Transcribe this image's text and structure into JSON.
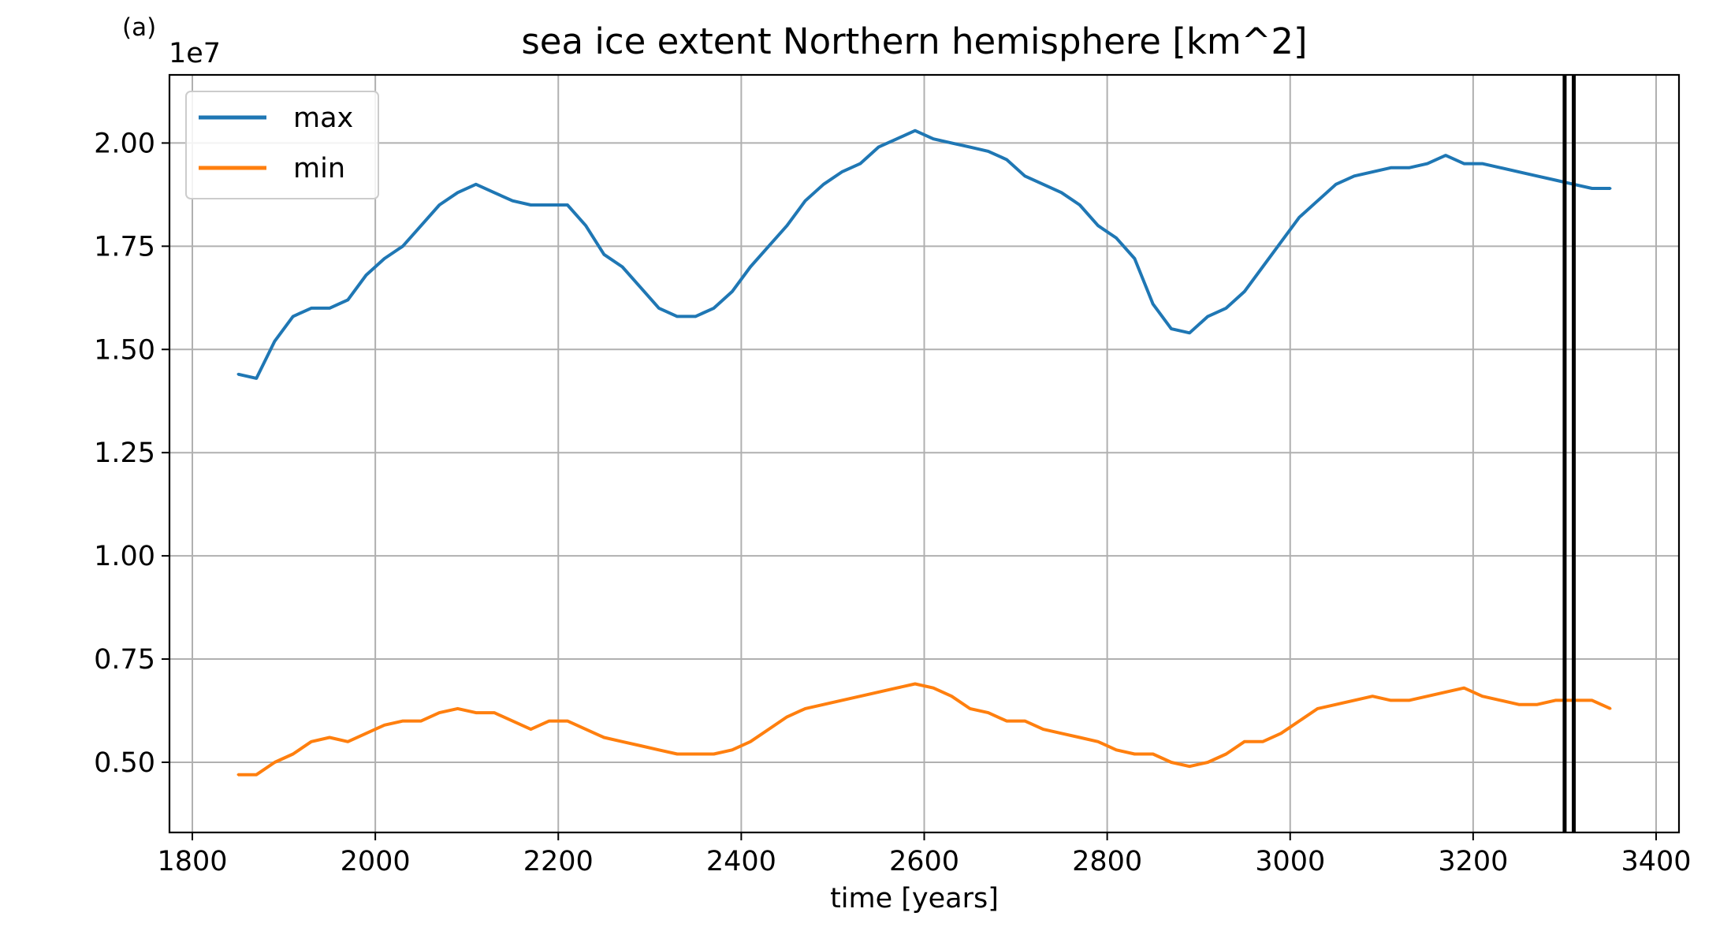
{
  "panel_label": "(a)",
  "chart_data": {
    "type": "line",
    "title": "sea ice extent Northern hemisphere [km^2]",
    "xlabel": "time [years]",
    "ylabel": "",
    "y_offset_label": "1e7",
    "xlim": [
      1775,
      3425
    ],
    "ylim": [
      0.33,
      2.165
    ],
    "y_unit_scale": 10000000,
    "xticks": [
      1800,
      2000,
      2200,
      2400,
      2600,
      2800,
      3000,
      3200,
      3400
    ],
    "xtick_labels": [
      "1800",
      "2000",
      "2200",
      "2400",
      "2600",
      "2800",
      "3000",
      "3200",
      "3400"
    ],
    "yticks": [
      0.5,
      0.75,
      1.0,
      1.25,
      1.5,
      1.75,
      2.0
    ],
    "ytick_labels": [
      "0.50",
      "0.75",
      "1.00",
      "1.25",
      "1.50",
      "1.75",
      "2.00"
    ],
    "grid": true,
    "legend_position": "top-left",
    "vertical_lines": [
      3300,
      3310
    ],
    "series": [
      {
        "name": "max",
        "color": "#1f77b4",
        "x": [
          1850,
          1870,
          1890,
          1910,
          1930,
          1950,
          1970,
          1990,
          2010,
          2030,
          2050,
          2070,
          2090,
          2110,
          2130,
          2150,
          2170,
          2190,
          2210,
          2230,
          2250,
          2270,
          2290,
          2310,
          2330,
          2350,
          2370,
          2390,
          2410,
          2430,
          2450,
          2470,
          2490,
          2510,
          2530,
          2550,
          2570,
          2590,
          2610,
          2630,
          2650,
          2670,
          2690,
          2710,
          2730,
          2750,
          2770,
          2790,
          2810,
          2830,
          2850,
          2870,
          2890,
          2910,
          2930,
          2950,
          2970,
          2990,
          3010,
          3030,
          3050,
          3070,
          3090,
          3110,
          3130,
          3150,
          3170,
          3190,
          3210,
          3230,
          3250,
          3270,
          3290,
          3310,
          3330,
          3350
        ],
        "values": [
          1.44,
          1.43,
          1.52,
          1.58,
          1.6,
          1.6,
          1.62,
          1.68,
          1.72,
          1.75,
          1.8,
          1.85,
          1.88,
          1.9,
          1.88,
          1.86,
          1.85,
          1.85,
          1.85,
          1.8,
          1.73,
          1.7,
          1.65,
          1.6,
          1.58,
          1.58,
          1.6,
          1.64,
          1.7,
          1.75,
          1.8,
          1.86,
          1.9,
          1.93,
          1.95,
          1.99,
          2.01,
          2.03,
          2.01,
          2.0,
          1.99,
          1.98,
          1.96,
          1.92,
          1.9,
          1.88,
          1.85,
          1.8,
          1.77,
          1.72,
          1.61,
          1.55,
          1.54,
          1.58,
          1.6,
          1.64,
          1.7,
          1.76,
          1.82,
          1.86,
          1.9,
          1.92,
          1.93,
          1.94,
          1.94,
          1.95,
          1.97,
          1.95,
          1.95,
          1.94,
          1.93,
          1.92,
          1.91,
          1.9,
          1.89,
          1.89
        ]
      },
      {
        "name": "min",
        "color": "#ff7f0e",
        "x": [
          1850,
          1870,
          1890,
          1910,
          1930,
          1950,
          1970,
          1990,
          2010,
          2030,
          2050,
          2070,
          2090,
          2110,
          2130,
          2150,
          2170,
          2190,
          2210,
          2230,
          2250,
          2270,
          2290,
          2310,
          2330,
          2350,
          2370,
          2390,
          2410,
          2430,
          2450,
          2470,
          2490,
          2510,
          2530,
          2550,
          2570,
          2590,
          2610,
          2630,
          2650,
          2670,
          2690,
          2710,
          2730,
          2750,
          2770,
          2790,
          2810,
          2830,
          2850,
          2870,
          2890,
          2910,
          2930,
          2950,
          2970,
          2990,
          3010,
          3030,
          3050,
          3070,
          3090,
          3110,
          3130,
          3150,
          3170,
          3190,
          3210,
          3230,
          3250,
          3270,
          3290,
          3310,
          3330,
          3350
        ],
        "values": [
          0.47,
          0.47,
          0.5,
          0.52,
          0.55,
          0.56,
          0.55,
          0.57,
          0.59,
          0.6,
          0.6,
          0.62,
          0.63,
          0.62,
          0.62,
          0.6,
          0.58,
          0.6,
          0.6,
          0.58,
          0.56,
          0.55,
          0.54,
          0.53,
          0.52,
          0.52,
          0.52,
          0.53,
          0.55,
          0.58,
          0.61,
          0.63,
          0.64,
          0.65,
          0.66,
          0.67,
          0.68,
          0.69,
          0.68,
          0.66,
          0.63,
          0.62,
          0.6,
          0.6,
          0.58,
          0.57,
          0.56,
          0.55,
          0.53,
          0.52,
          0.52,
          0.5,
          0.49,
          0.5,
          0.52,
          0.55,
          0.55,
          0.57,
          0.6,
          0.63,
          0.64,
          0.65,
          0.66,
          0.65,
          0.65,
          0.66,
          0.67,
          0.68,
          0.66,
          0.65,
          0.64,
          0.64,
          0.65,
          0.65,
          0.65,
          0.63
        ]
      }
    ]
  }
}
